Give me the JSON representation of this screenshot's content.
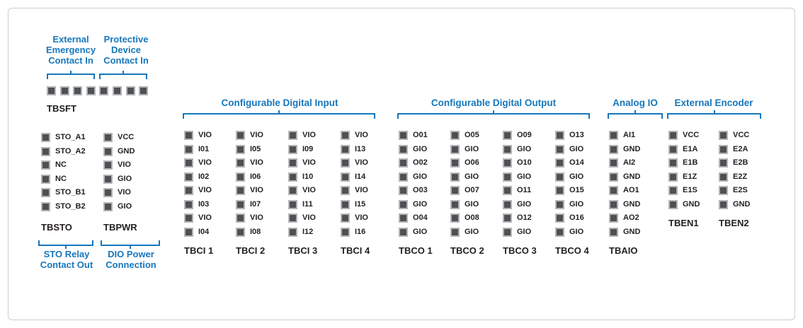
{
  "colors": {
    "accent": "#1777bc",
    "text": "#231f20",
    "pin_inner": "#4f5053",
    "pin_frame": "#b2b4b6",
    "frame_border": "#c9ced2"
  },
  "tbsft": {
    "name": "TBSFT",
    "pin_count": 8,
    "annotations": [
      {
        "lines": [
          "External",
          "Emergency",
          "Contact In"
        ]
      },
      {
        "lines": [
          "Protective",
          "Device",
          "Contact In"
        ]
      }
    ]
  },
  "left_blocks": [
    {
      "name": "TBSTO",
      "pins": [
        "STO_A1",
        "STO_A2",
        "NC",
        "NC",
        "STO_B1",
        "STO_B2"
      ],
      "footer": {
        "lines": [
          "STO Relay",
          "Contact Out"
        ]
      }
    },
    {
      "name": "TBPWR",
      "pins": [
        "VCC",
        "GND",
        "VIO",
        "GIO",
        "VIO",
        "GIO"
      ],
      "footer": {
        "lines": [
          "DIO Power",
          "Connection"
        ]
      }
    }
  ],
  "groups": [
    {
      "header": "Configurable Digital Input",
      "blocks": [
        {
          "name": "TBCI 1",
          "pins": [
            "VIO",
            "I01",
            "VIO",
            "I02",
            "VIO",
            "I03",
            "VIO",
            "I04"
          ]
        },
        {
          "name": "TBCI 2",
          "pins": [
            "VIO",
            "I05",
            "VIO",
            "I06",
            "VIO",
            "I07",
            "VIO",
            "I08"
          ]
        },
        {
          "name": "TBCI 3",
          "pins": [
            "VIO",
            "I09",
            "VIO",
            "I10",
            "VIO",
            "I11",
            "VIO",
            "I12"
          ]
        },
        {
          "name": "TBCI 4",
          "pins": [
            "VIO",
            "I13",
            "VIO",
            "I14",
            "VIO",
            "I15",
            "VIO",
            "I16"
          ]
        }
      ]
    },
    {
      "header": "Configurable Digital Output",
      "blocks": [
        {
          "name": "TBCO 1",
          "pins": [
            "O01",
            "GIO",
            "O02",
            "GIO",
            "O03",
            "GIO",
            "O04",
            "GIO"
          ]
        },
        {
          "name": "TBCO 2",
          "pins": [
            "O05",
            "GIO",
            "O06",
            "GIO",
            "O07",
            "GIO",
            "O08",
            "GIO"
          ]
        },
        {
          "name": "TBCO 3",
          "pins": [
            "O09",
            "GIO",
            "O10",
            "GIO",
            "O11",
            "GIO",
            "O12",
            "GIO"
          ]
        },
        {
          "name": "TBCO 4",
          "pins": [
            "O13",
            "GIO",
            "O14",
            "GIO",
            "O15",
            "GIO",
            "O16",
            "GIO"
          ]
        }
      ]
    },
    {
      "header": "Analog IO",
      "blocks": [
        {
          "name": "TBAIO",
          "pins": [
            "AI1",
            "GND",
            "AI2",
            "GND",
            "AO1",
            "GND",
            "AO2",
            "GND"
          ]
        }
      ]
    },
    {
      "header": "External Encoder",
      "blocks": [
        {
          "name": "TBEN1",
          "pins": [
            "VCC",
            "E1A",
            "E1B",
            "E1Z",
            "E1S",
            "GND"
          ]
        },
        {
          "name": "TBEN2",
          "pins": [
            "VCC",
            "E2A",
            "E2B",
            "E2Z",
            "E2S",
            "GND"
          ]
        }
      ]
    }
  ]
}
